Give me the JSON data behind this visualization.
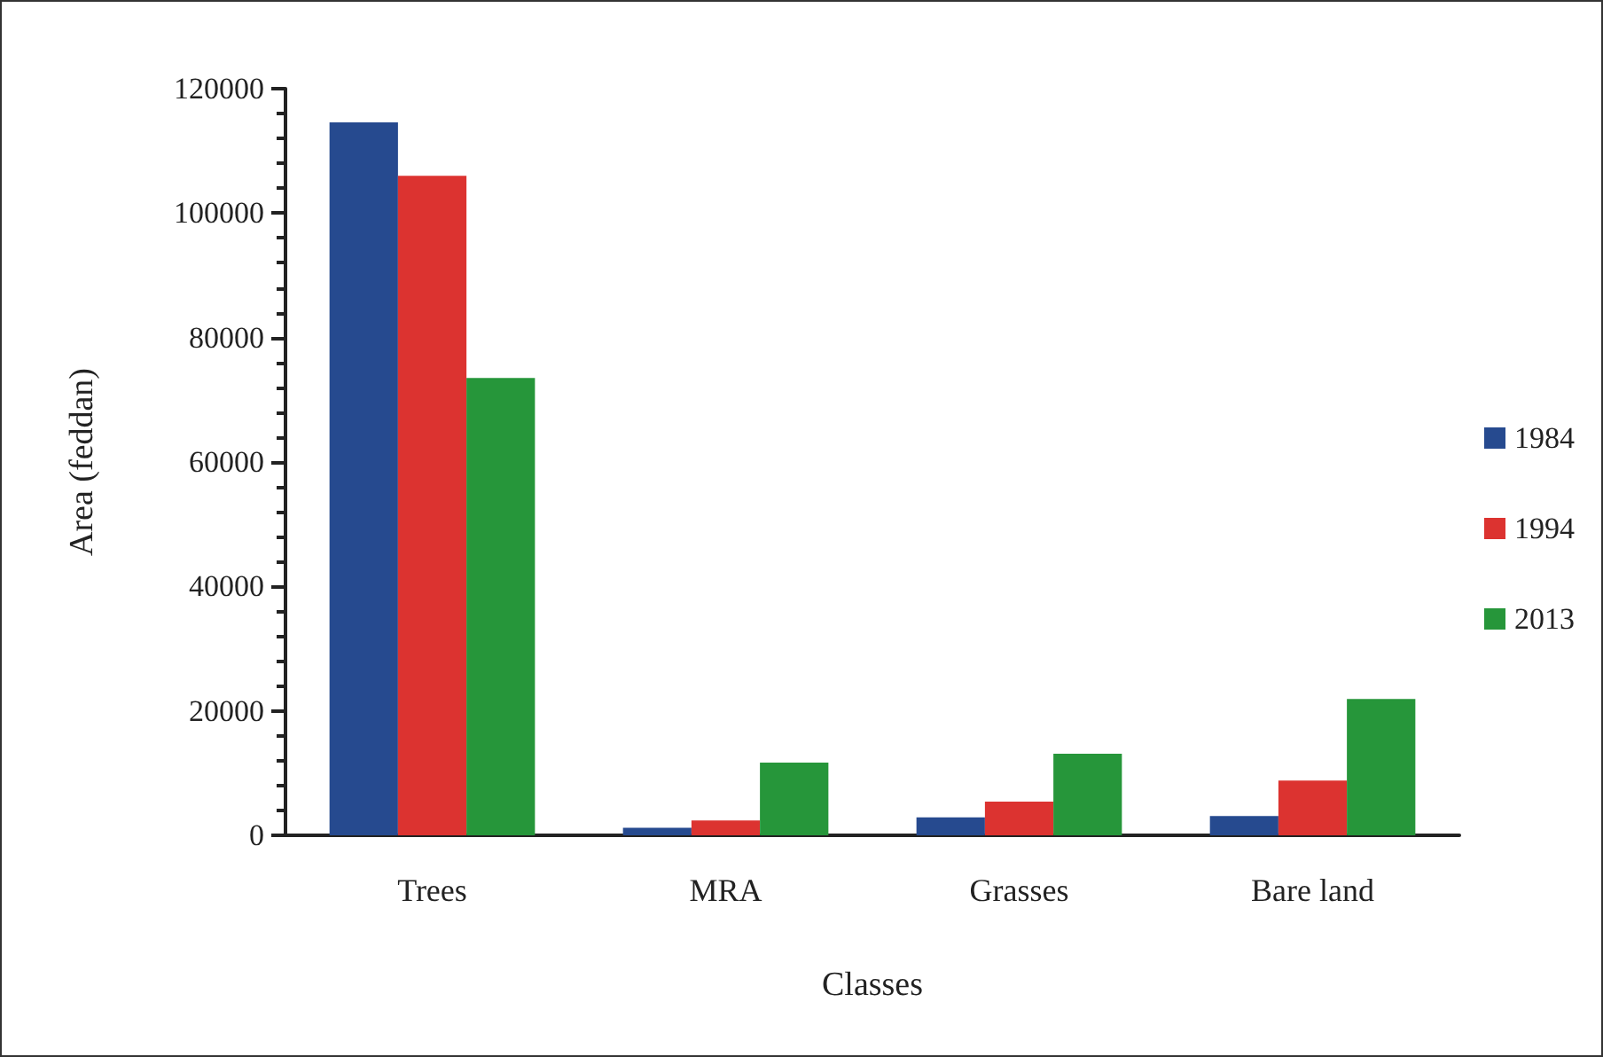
{
  "chart_data": {
    "type": "bar",
    "xlabel": "Classes",
    "ylabel": "Area (feddan)",
    "categories": [
      "Trees",
      "MRA",
      "Grasses",
      "Bare land"
    ],
    "series": [
      {
        "name": "1984",
        "color": "#264a8f",
        "values": [
          114600,
          1200,
          2900,
          3100
        ]
      },
      {
        "name": "1994",
        "color": "#dc3330",
        "values": [
          106000,
          2400,
          5400,
          8800
        ]
      },
      {
        "name": "2013",
        "color": "#26963a",
        "values": [
          73500,
          11700,
          13100,
          21900
        ]
      }
    ],
    "ylim": [
      0,
      120000
    ],
    "yticks": [
      0,
      20000,
      40000,
      60000,
      80000,
      100000,
      120000
    ],
    "grid": false,
    "legend": "right"
  }
}
